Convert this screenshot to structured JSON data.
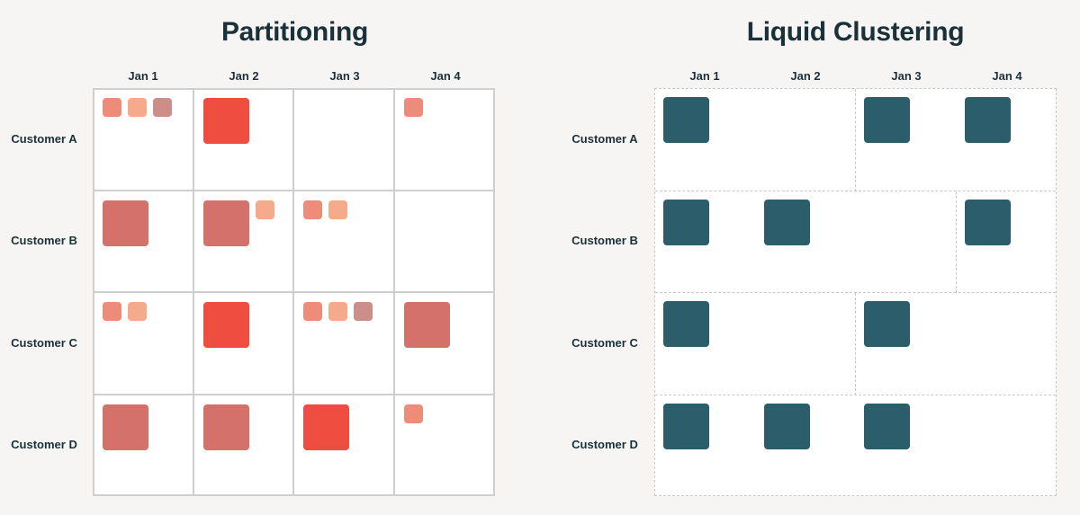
{
  "columns": [
    "Jan 1",
    "Jan 2",
    "Jan 3",
    "Jan 4"
  ],
  "rows": [
    "Customer A",
    "Customer B",
    "Customer C",
    "Customer D"
  ],
  "colors": {
    "partition_large_bright": "#ee4d3f",
    "partition_large_muted": "#d4716a",
    "partition_small_coral": "#ee8c7a",
    "partition_small_peach": "#f5aa8c",
    "partition_small_mauve": "#cd8e8a",
    "cluster_file": "#2b5d6b"
  },
  "partitioning": {
    "title": "Partitioning",
    "cells": [
      [
        [
          "small_coral",
          "small_peach",
          "small_mauve"
        ],
        [
          "large_bright"
        ],
        [],
        [
          "small_coral"
        ]
      ],
      [
        [
          "large_muted"
        ],
        [
          "large_muted",
          "small_peach"
        ],
        [
          "small_coral",
          "small_peach"
        ],
        []
      ],
      [
        [
          "small_coral",
          "small_peach"
        ],
        [
          "large_bright"
        ],
        [
          "small_coral",
          "small_peach",
          "small_mauve"
        ],
        [
          "large_muted"
        ]
      ],
      [
        [
          "large_muted"
        ],
        [
          "large_muted"
        ],
        [
          "large_bright"
        ],
        [
          "small_coral"
        ]
      ]
    ]
  },
  "liquid_clustering": {
    "title": "Liquid Clustering",
    "files": [
      [
        1,
        0,
        1,
        1
      ],
      [
        1,
        1,
        0,
        1
      ],
      [
        1,
        0,
        1,
        0
      ],
      [
        1,
        1,
        1,
        0
      ]
    ],
    "merged_cells": [
      [
        [
          0,
          1
        ]
      ],
      [
        [
          2
        ]
      ],
      [
        [
          1
        ],
        [
          3
        ]
      ],
      [
        [
          3
        ]
      ]
    ]
  }
}
